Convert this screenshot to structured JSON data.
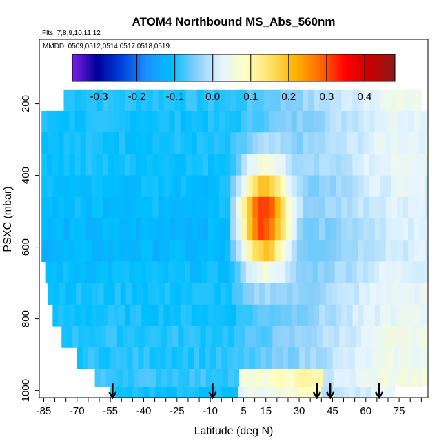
{
  "chart_data": {
    "type": "heatmap",
    "title": "ATOM4 Northbound MS_Abs_560nm",
    "subtitle_flights": "Flts: 7,8,9,10,11,12",
    "subtitle_dates": "MMDD: 0509,0512,0514,0517,0518,0519",
    "xlabel": "Latitude (deg N)",
    "ylabel": "PSXC (mbar)",
    "x_ticks": [
      -85,
      -70,
      -55,
      -40,
      -25,
      -10,
      5,
      15,
      30,
      45,
      60,
      75
    ],
    "x_tick_labels": [
      "-85",
      "-70",
      "-55",
      "-40",
      "-25",
      "-10",
      "5",
      "15",
      "30",
      "45",
      "60",
      "75"
    ],
    "xlim": [
      -87,
      88
    ],
    "y_ticks": [
      200,
      400,
      600,
      800,
      1000
    ],
    "y_tick_labels": [
      "200",
      "400",
      "600",
      "800",
      "1000"
    ],
    "ylim": [
      1020,
      20
    ],
    "colorbar": {
      "range": [
        -0.37,
        0.48
      ],
      "ticks": [
        -0.3,
        -0.2,
        -0.1,
        0.0,
        0.1,
        0.2,
        0.3,
        0.4
      ],
      "tick_labels": [
        "-0.3",
        "-0.2",
        "-0.1",
        "0.0",
        "0.1",
        "0.2",
        "0.3",
        "0.4"
      ],
      "colors": [
        "#7a1fe6",
        "#00009a",
        "#0044dd",
        "#1e90ff",
        "#00bfff",
        "#87cefa",
        "#e6f5ff",
        "#ffffc0",
        "#ffe066",
        "#ffb000",
        "#ff6a00",
        "#ff0000",
        "#c80000",
        "#8b1a1a"
      ],
      "placement": "top"
    },
    "arrows_latitude": [
      -54,
      -9,
      38,
      44,
      66
    ],
    "profile_layers": [
      {
        "p_top": 160,
        "p_bot": 220,
        "lat_min": -76,
        "lat_max": 85,
        "base": -0.09
      },
      {
        "p_top": 220,
        "p_bot": 280,
        "lat_min": -86,
        "lat_max": 88,
        "base": -0.1
      },
      {
        "p_top": 280,
        "p_bot": 340,
        "lat_min": -86,
        "lat_max": 88,
        "base": -0.1
      },
      {
        "p_top": 340,
        "p_bot": 400,
        "lat_min": -86,
        "lat_max": 88,
        "base": -0.1
      },
      {
        "p_top": 400,
        "p_bot": 460,
        "lat_min": -86,
        "lat_max": 88,
        "base": -0.11
      },
      {
        "p_top": 460,
        "p_bot": 520,
        "lat_min": -86,
        "lat_max": 88,
        "base": -0.11
      },
      {
        "p_top": 520,
        "p_bot": 580,
        "lat_min": -86,
        "lat_max": 88,
        "base": -0.12
      },
      {
        "p_top": 580,
        "p_bot": 640,
        "lat_min": -86,
        "lat_max": 88,
        "base": -0.12
      },
      {
        "p_top": 640,
        "p_bot": 700,
        "lat_min": -84,
        "lat_max": 88,
        "base": -0.11
      },
      {
        "p_top": 700,
        "p_bot": 760,
        "lat_min": -83,
        "lat_max": 88,
        "base": -0.1
      },
      {
        "p_top": 760,
        "p_bot": 820,
        "lat_min": -81,
        "lat_max": 88,
        "base": -0.1
      },
      {
        "p_top": 820,
        "p_bot": 880,
        "lat_min": -77,
        "lat_max": 88,
        "base": -0.09
      },
      {
        "p_top": 880,
        "p_bot": 940,
        "lat_min": -70,
        "lat_max": 88,
        "base": -0.09
      },
      {
        "p_top": 940,
        "p_bot": 990,
        "lat_min": -62,
        "lat_max": 88,
        "base": -0.08
      },
      {
        "p_top": 990,
        "p_bot": 1020,
        "lat_min": -55,
        "lat_max": 73,
        "base": -0.1
      }
    ],
    "plume": {
      "center_lat": 14,
      "center_p": 520,
      "peak": 0.42,
      "lat_halfwidth": 13,
      "p_halfwidth": 170,
      "west_edge_lat": 0
    }
  }
}
